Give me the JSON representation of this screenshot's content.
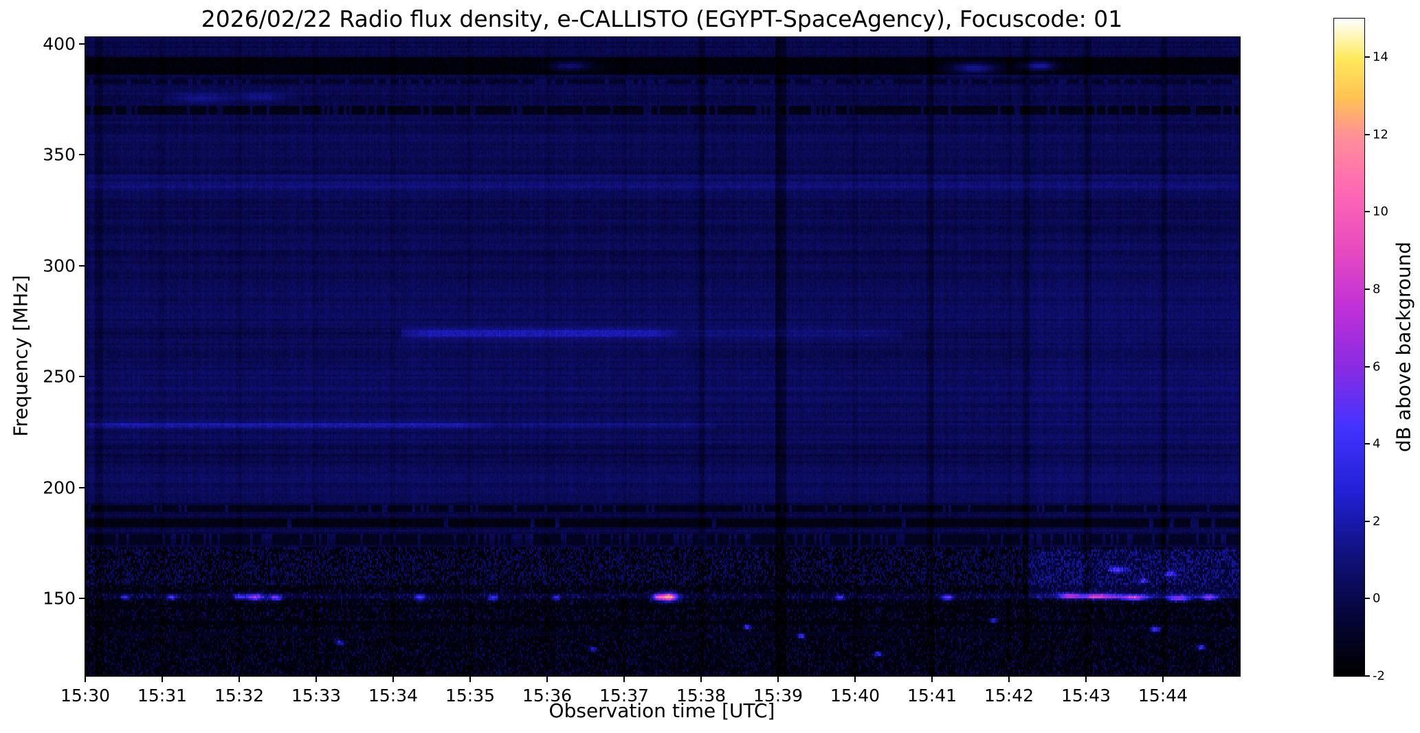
{
  "figure": {
    "background": "#ffffff"
  },
  "chart_data": {
    "type": "heatmap",
    "title": "2026/02/22  Radio flux density, e-CALLISTO (EGYPT-SpaceAgency), Focuscode: 01",
    "xlabel": "Observation time [UTC]",
    "ylabel": "Frequency [MHz]",
    "colorbar_label": "dB above background",
    "x_tick_labels": [
      "15:30",
      "15:31",
      "15:32",
      "15:33",
      "15:34",
      "15:35",
      "15:36",
      "15:37",
      "15:38",
      "15:39",
      "15:40",
      "15:41",
      "15:42",
      "15:43",
      "15:44"
    ],
    "x_range_min": [
      0,
      15
    ],
    "y_ticks": [
      400,
      350,
      300,
      250,
      200,
      150
    ],
    "y_range": [
      115,
      403
    ],
    "value_range": [
      -2,
      15
    ],
    "colorbar_ticks": [
      14,
      12,
      10,
      8,
      6,
      4,
      2,
      0,
      -2
    ],
    "colormap": [
      [
        0.0,
        "#000000"
      ],
      [
        0.09,
        "#05053a"
      ],
      [
        0.18,
        "#10107a"
      ],
      [
        0.28,
        "#2121d6"
      ],
      [
        0.38,
        "#4433ff"
      ],
      [
        0.47,
        "#8a2be2"
      ],
      [
        0.56,
        "#c030d8"
      ],
      [
        0.65,
        "#e84bbf"
      ],
      [
        0.74,
        "#ff69b4"
      ],
      [
        0.82,
        "#ff8f9a"
      ],
      [
        0.88,
        "#ffc253"
      ],
      [
        0.94,
        "#ffe95c"
      ],
      [
        1.0,
        "#ffffff"
      ]
    ],
    "features": {
      "background": {
        "base": 0.42,
        "noise": 0.5,
        "row_noise": 0.3,
        "col_noise": 0.18,
        "seed": 7
      },
      "mean_bands": [
        {
          "f0": 195,
          "f1": 290,
          "add": 0.32
        },
        {
          "f0": 290,
          "f1": 362,
          "add": 0.1
        },
        {
          "f0": 330,
          "f1": 341,
          "add": 0.42
        },
        {
          "f0": 210,
          "f1": 219,
          "add": -0.22
        },
        {
          "f0": 243,
          "f1": 253,
          "add": 0.2
        },
        {
          "f0": 115,
          "f1": 124,
          "add": 0.25
        },
        {
          "f0": 356,
          "f1": 366,
          "add": 0.12
        }
      ],
      "noise_bands": [
        {
          "f0": 156,
          "f1": 173,
          "mean": 0.95,
          "amp": 0.7,
          "black_p": 0.05,
          "spot_p": 0.05,
          "spot_v": 2.6
        },
        {
          "f0": 145,
          "f1": 156,
          "mean": 0.55,
          "amp": 1.0,
          "black_p": 0.2,
          "spot_p": 0.06,
          "spot_v": 3.5
        },
        {
          "f0": 115,
          "f1": 145,
          "mean": 0.5,
          "amp": 0.85,
          "black_p": 0.16,
          "spot_p": 0.05,
          "spot_v": 3.2
        }
      ],
      "dash_rows": [
        {
          "f": 390.0,
          "hw": 3.5,
          "seg": 4,
          "dark_p": 0.5,
          "dark_v": -1.7,
          "bright_p": 0.1,
          "bright_v": 2.4
        },
        {
          "f": 370.0,
          "hw": 2.0,
          "seg": 2,
          "dark_p": 0.35,
          "dark_v": -1.4,
          "bright_p": 0.22,
          "bright_v": 1.7
        },
        {
          "f": 383.0,
          "hw": 1.2,
          "seg": 3,
          "dark_p": 0.25,
          "dark_v": -0.9,
          "bright_p": 0.12,
          "bright_v": 1.2
        },
        {
          "f": 190.5,
          "hw": 1.5,
          "seg": 2,
          "dark_p": 0.4,
          "dark_v": -1.3,
          "bright_p": 0.15,
          "bright_v": 1.2
        },
        {
          "f": 184.0,
          "hw": 2.2,
          "seg": 3,
          "dark_p": 0.45,
          "dark_v": -1.5,
          "bright_p": 0.12,
          "bright_v": 1.3
        },
        {
          "f": 176.5,
          "hw": 2.5,
          "seg": 2,
          "dark_p": 0.22,
          "dark_v": -1.2,
          "bright_p": 0.28,
          "bright_v": 1.5
        },
        {
          "f": 146.5,
          "hw": 0.9,
          "seg": 5,
          "dark_p": 0.6,
          "dark_v": -1.6,
          "bright_p": 0.06,
          "bright_v": 1.6
        },
        {
          "f": 139.0,
          "hw": 1.3,
          "seg": 4,
          "dark_p": 0.5,
          "dark_v": -1.6,
          "bright_p": 0.1,
          "bright_v": 2.0
        },
        {
          "f": 134.0,
          "hw": 1.1,
          "seg": 3,
          "dark_p": 0.3,
          "dark_v": -1.1,
          "bright_p": 0.18,
          "bright_v": 2.2
        }
      ],
      "hlines": [
        {
          "f": 269.5,
          "hw": 2.2,
          "amp": 2.4,
          "t0": 4.1,
          "t1": 7.7
        },
        {
          "f": 269.5,
          "hw": 2.2,
          "amp": 0.9,
          "t0": 7.7,
          "t1": 10.6
        },
        {
          "f": 269.5,
          "hw": 2.5,
          "amp": -0.45,
          "t0": 0,
          "t1": 4.1
        },
        {
          "f": 268.5,
          "hw": 2.0,
          "amp": -0.4,
          "t0": 10.6,
          "t1": 12.3
        },
        {
          "f": 228.0,
          "hw": 1.6,
          "amp": 1.9,
          "t0": 0,
          "t1": 5.3
        },
        {
          "f": 228.0,
          "hw": 1.6,
          "amp": 1.0,
          "t0": 5.3,
          "t1": 8.2
        },
        {
          "f": 151.0,
          "hw": 1.3,
          "amp": 1.4,
          "t0": 0,
          "t1": 15
        },
        {
          "f": 336.0,
          "hw": 2.0,
          "amp": 0.5,
          "t0": 0,
          "t1": 15
        },
        {
          "f": 213.5,
          "hw": 1.0,
          "amp": -0.5,
          "t0": 0,
          "t1": 15
        }
      ],
      "patches": [
        {
          "t0": 12.25,
          "t1": 15,
          "f0": 150,
          "f1": 172,
          "add": 1.1
        },
        {
          "t0": 12.25,
          "t1": 15,
          "f0": 172,
          "f1": 310,
          "add": 0.2
        },
        {
          "t0": 4.0,
          "t1": 7.8,
          "f0": 255,
          "f1": 266,
          "add": 0.15
        }
      ],
      "minute_lines": {
        "w": 0.035,
        "add": -0.3
      },
      "extra_vlines": [
        {
          "t": 9.03,
          "w": 0.07,
          "add": -1.0
        },
        {
          "t": 8.02,
          "w": 0.04,
          "add": -0.45
        },
        {
          "t": 12.22,
          "w": 0.05,
          "add": -0.6
        },
        {
          "t": 10.97,
          "w": 0.04,
          "add": -0.45
        },
        {
          "t": 0.18,
          "w": 0.05,
          "add": -0.55
        },
        {
          "t": 13.03,
          "w": 0.04,
          "add": -0.5
        },
        {
          "t": 14.02,
          "w": 0.04,
          "add": -0.5
        }
      ],
      "spots": [
        {
          "t": 7.58,
          "f": 150.5,
          "rt": 0.11,
          "rf": 1.8,
          "amp": 13.0
        },
        {
          "t": 7.44,
          "f": 150.5,
          "rt": 0.07,
          "rf": 1.5,
          "amp": 7.5
        },
        {
          "t": 2.2,
          "f": 150.5,
          "rt": 0.12,
          "rf": 1.5,
          "amp": 7.0
        },
        {
          "t": 2.47,
          "f": 150.3,
          "rt": 0.08,
          "rf": 1.4,
          "amp": 6.0
        },
        {
          "t": 2.0,
          "f": 150.6,
          "rt": 0.06,
          "rf": 1.3,
          "amp": 5.0
        },
        {
          "t": 4.35,
          "f": 150.4,
          "rt": 0.07,
          "rf": 1.4,
          "amp": 5.5
        },
        {
          "t": 5.3,
          "f": 150.1,
          "rt": 0.06,
          "rf": 1.3,
          "amp": 5.0
        },
        {
          "t": 6.12,
          "f": 150.2,
          "rt": 0.05,
          "rf": 1.2,
          "amp": 4.5
        },
        {
          "t": 0.52,
          "f": 150.4,
          "rt": 0.05,
          "rf": 1.2,
          "amp": 4.5
        },
        {
          "t": 1.12,
          "f": 150.5,
          "rt": 0.06,
          "rf": 1.2,
          "amp": 5.0
        },
        {
          "t": 9.8,
          "f": 150.2,
          "rt": 0.06,
          "rf": 1.2,
          "amp": 5.0
        },
        {
          "t": 11.2,
          "f": 150.3,
          "rt": 0.08,
          "rf": 1.3,
          "amp": 6.0
        },
        {
          "t": 12.78,
          "f": 151.0,
          "rt": 0.12,
          "rf": 1.2,
          "amp": 7.0
        },
        {
          "t": 13.15,
          "f": 150.8,
          "rt": 0.25,
          "rf": 1.2,
          "amp": 8.5
        },
        {
          "t": 13.62,
          "f": 150.2,
          "rt": 0.18,
          "rf": 1.2,
          "amp": 8.0
        },
        {
          "t": 14.2,
          "f": 149.8,
          "rt": 0.15,
          "rf": 1.2,
          "amp": 7.5
        },
        {
          "t": 14.6,
          "f": 150.3,
          "rt": 0.1,
          "rf": 1.2,
          "amp": 6.5
        },
        {
          "t": 13.4,
          "f": 163.0,
          "rt": 0.1,
          "rf": 1.0,
          "amp": 5.5
        },
        {
          "t": 14.1,
          "f": 161.0,
          "rt": 0.08,
          "rf": 1.0,
          "amp": 5.0
        },
        {
          "t": 13.75,
          "f": 158.0,
          "rt": 0.06,
          "rf": 1.0,
          "amp": 4.5
        },
        {
          "t": 8.6,
          "f": 137.0,
          "rt": 0.05,
          "rf": 1.0,
          "amp": 6.0
        },
        {
          "t": 9.3,
          "f": 133.0,
          "rt": 0.05,
          "rf": 1.0,
          "amp": 5.5
        },
        {
          "t": 13.9,
          "f": 136.0,
          "rt": 0.07,
          "rf": 1.0,
          "amp": 6.5
        },
        {
          "t": 14.5,
          "f": 128.0,
          "rt": 0.05,
          "rf": 1.0,
          "amp": 6.0
        },
        {
          "t": 11.8,
          "f": 140.0,
          "rt": 0.05,
          "rf": 1.0,
          "amp": 5.5
        },
        {
          "t": 3.3,
          "f": 130.0,
          "rt": 0.05,
          "rf": 1.0,
          "amp": 4.5
        },
        {
          "t": 6.6,
          "f": 127.0,
          "rt": 0.05,
          "rf": 1.0,
          "amp": 4.5
        },
        {
          "t": 10.3,
          "f": 125.0,
          "rt": 0.05,
          "rf": 1.0,
          "amp": 5.0
        },
        {
          "t": 11.55,
          "f": 389.0,
          "rt": 0.3,
          "rf": 2.5,
          "amp": 3.2
        },
        {
          "t": 12.4,
          "f": 390.0,
          "rt": 0.2,
          "rf": 2.0,
          "amp": 3.6
        },
        {
          "t": 6.3,
          "f": 390.0,
          "rt": 0.25,
          "rf": 2.0,
          "amp": 2.5
        },
        {
          "t": 1.5,
          "f": 375.5,
          "rt": 0.4,
          "rf": 2.2,
          "amp": 1.6
        },
        {
          "t": 2.3,
          "f": 376.0,
          "rt": 0.3,
          "rf": 2.0,
          "amp": 1.5
        }
      ]
    }
  }
}
